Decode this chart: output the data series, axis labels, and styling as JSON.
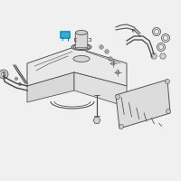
{
  "bg_color": "#f0f0f0",
  "line_color": "#4a4a4a",
  "highlight_color": "#2dafd6",
  "figsize": [
    2.0,
    2.0
  ],
  "dpi": 100,
  "lw": 0.55
}
